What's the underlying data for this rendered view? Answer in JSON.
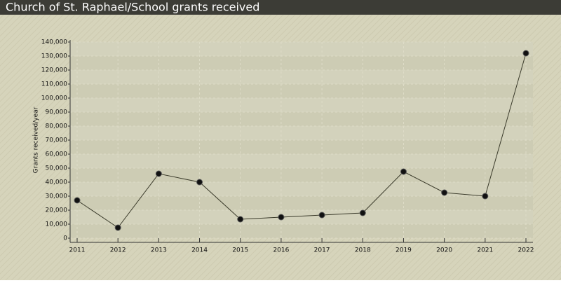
{
  "chart_data": {
    "type": "line",
    "title": "Church of St. Raphael/School grants received",
    "y_label": "Grants received/year",
    "x": [
      2011,
      2012,
      2013,
      2014,
      2015,
      2016,
      2017,
      2018,
      2019,
      2020,
      2021,
      2022
    ],
    "series": [
      {
        "name": "Grants received",
        "color": "#3a3a2a",
        "values": [
          27000,
          7500,
          46000,
          40000,
          13500,
          15000,
          16500,
          18000,
          47500,
          32500,
          30000,
          132000
        ]
      }
    ],
    "xlim": [
      2011,
      2022
    ],
    "xticks": [
      2011,
      2012,
      2013,
      2014,
      2015,
      2016,
      2017,
      2018,
      2019,
      2020,
      2021,
      2022
    ],
    "ylim": [
      0,
      140000
    ],
    "yticks": [
      0,
      {
        "value": 10000,
        "label": "10,000"
      },
      {
        "value": 20000,
        "label": "20,000"
      },
      {
        "value": 30000,
        "label": "30,000"
      },
      {
        "value": 40000,
        "label": "40,000"
      },
      {
        "value": 50000,
        "label": "50,000"
      },
      {
        "value": 60000,
        "label": "60,000"
      },
      {
        "value": 70000,
        "label": "70,000"
      },
      {
        "value": 80000,
        "label": "80,000"
      },
      {
        "value": 90000,
        "label": "90,000"
      },
      {
        "value": 100000,
        "label": "100,000"
      },
      {
        "value": 110000,
        "label": "110,000"
      },
      {
        "value": 120000,
        "label": "120,000"
      },
      {
        "value": 130000,
        "label": "130,000"
      },
      {
        "value": 140000,
        "label": "140,000"
      }
    ],
    "grid": true
  }
}
